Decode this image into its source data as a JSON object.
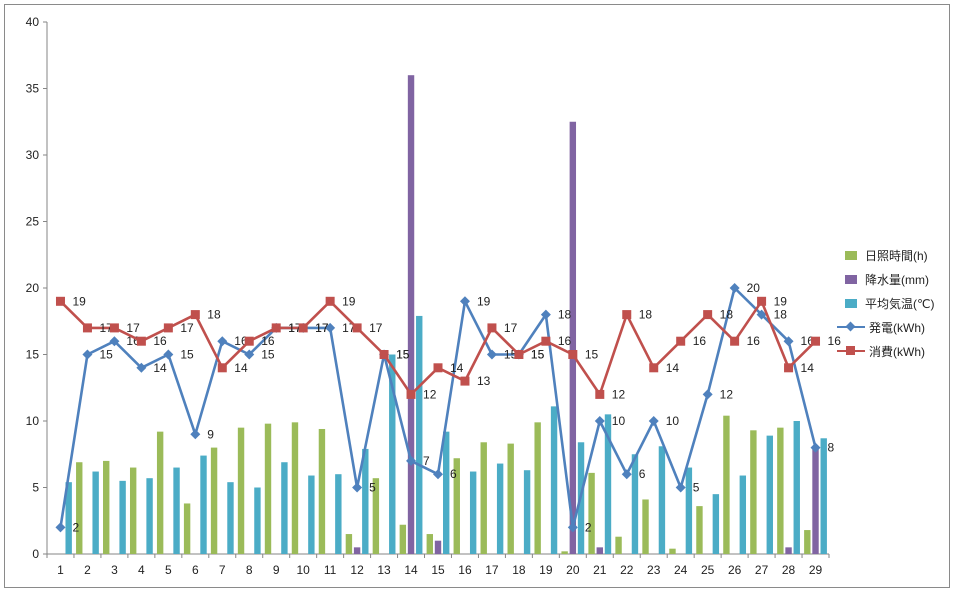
{
  "chart_data": {
    "type": "bar+line",
    "categories": [
      "1",
      "2",
      "3",
      "4",
      "5",
      "6",
      "7",
      "8",
      "9",
      "10",
      "11",
      "12",
      "13",
      "14",
      "15",
      "16",
      "17",
      "18",
      "19",
      "20",
      "21",
      "22",
      "23",
      "24",
      "25",
      "26",
      "27",
      "28",
      "29"
    ],
    "ylim": [
      0,
      40
    ],
    "yticks": [
      0,
      5,
      10,
      15,
      20,
      25,
      30,
      35,
      40
    ],
    "series": [
      {
        "name": "日照時間(h)",
        "kind": "bar",
        "color": "#9bbb59",
        "values": [
          0,
          6.9,
          7.0,
          6.5,
          9.2,
          3.8,
          8.0,
          9.5,
          9.8,
          9.9,
          9.4,
          1.5,
          5.7,
          2.2,
          1.5,
          7.2,
          8.4,
          8.3,
          9.9,
          0.2,
          6.1,
          1.3,
          4.1,
          0.4,
          3.6,
          10.4,
          9.3,
          9.5,
          1.8
        ]
      },
      {
        "name": "降水量(mm)",
        "kind": "bar",
        "color": "#8064a2",
        "values": [
          0,
          0,
          0,
          0,
          0,
          0,
          0,
          0,
          0,
          0,
          0,
          0.5,
          0,
          36,
          1.0,
          0,
          0,
          0,
          0,
          32.5,
          0.5,
          0,
          0,
          0,
          0,
          0,
          0,
          0.5,
          8.0
        ]
      },
      {
        "name": "平均気温(℃)",
        "kind": "bar",
        "color": "#4bacc6",
        "values": [
          5.4,
          6.2,
          5.5,
          5.7,
          6.5,
          7.4,
          5.4,
          5.0,
          6.9,
          5.9,
          6.0,
          7.9,
          15.0,
          17.9,
          9.2,
          6.2,
          6.8,
          6.3,
          11.1,
          8.4,
          10.5,
          7.5,
          8.1,
          6.5,
          4.5,
          5.9,
          8.9,
          10.0,
          8.7
        ]
      },
      {
        "name": "発電(kWh)",
        "kind": "line",
        "marker": "diamond",
        "color": "#4f81bd",
        "values": [
          2,
          15,
          16,
          14,
          15,
          9,
          16,
          15,
          17,
          17,
          17,
          5,
          15,
          7,
          6,
          19,
          15,
          15,
          18,
          2,
          10,
          6,
          10,
          5,
          12,
          20,
          18,
          16,
          8
        ]
      },
      {
        "name": "消費(kWh)",
        "kind": "line",
        "marker": "square",
        "color": "#c0504d",
        "values": [
          19,
          17,
          17,
          16,
          17,
          18,
          14,
          16,
          17,
          17,
          19,
          17,
          15,
          12,
          14,
          13,
          17,
          15,
          16,
          15,
          12,
          18,
          14,
          16,
          18,
          16,
          19,
          14,
          16
        ]
      }
    ],
    "legend": [
      "日照時間(h)",
      "降水量(mm)",
      "平均気温(℃)",
      "発電(kWh)",
      "消費(kWh)"
    ],
    "legend_position": "right",
    "grid": false
  }
}
